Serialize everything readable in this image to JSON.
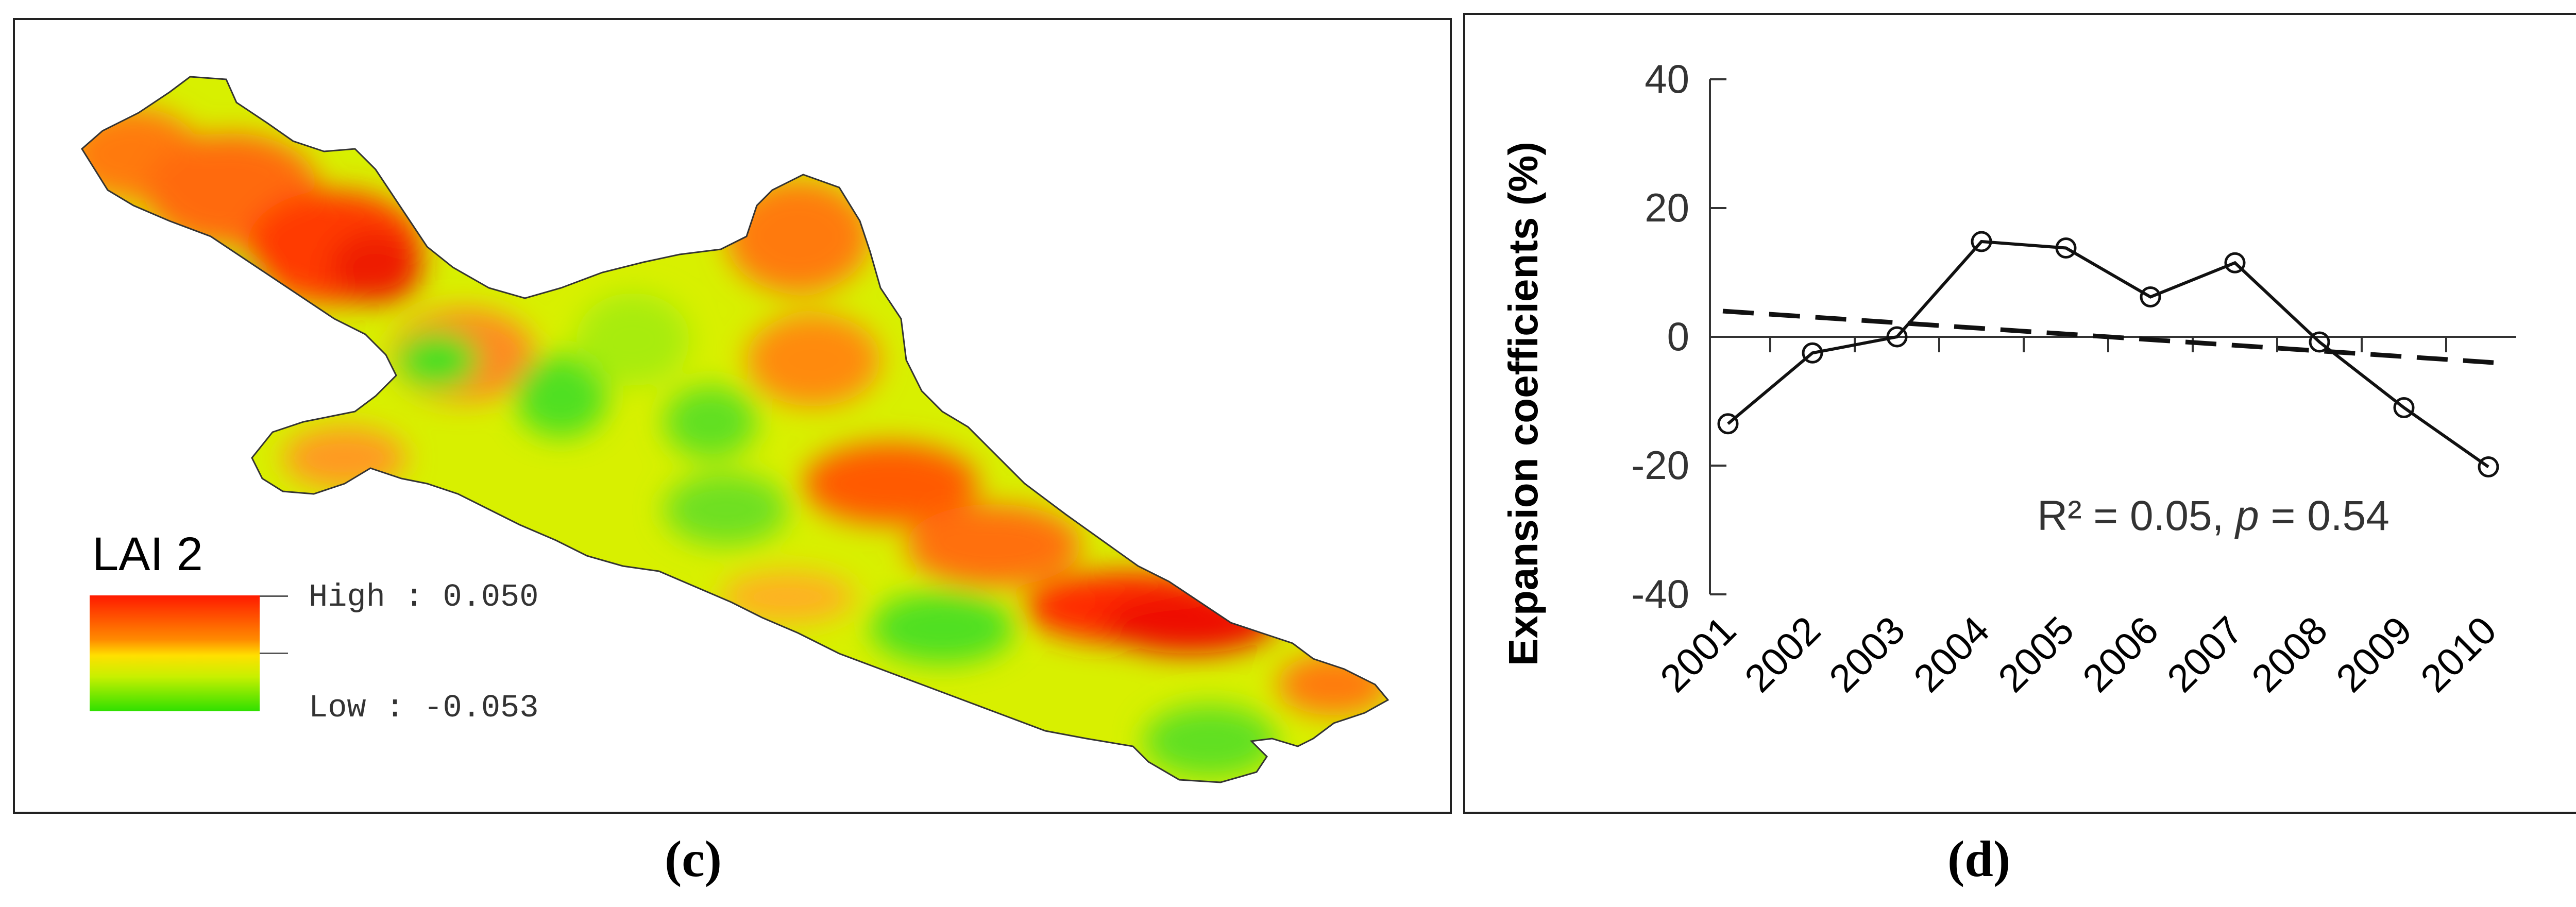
{
  "panel_c": {
    "caption": "(c)",
    "legend": {
      "title": "LAI 2",
      "high_label": "High : 0.050",
      "low_label": "Low : -0.053",
      "colors": [
        "#ff1a00",
        "#ff8a00",
        "#ffe000",
        "#c8f000",
        "#2fe000"
      ]
    }
  },
  "panel_d": {
    "caption": "(d)"
  },
  "chart_data": {
    "type": "line",
    "title": "",
    "xlabel": "",
    "ylabel": "Expansion coefficients (%)",
    "categories": [
      "2001",
      "2002",
      "2003",
      "2004",
      "2005",
      "2006",
      "2007",
      "2008",
      "2009",
      "2010"
    ],
    "series": [
      {
        "values": [
          -13.5,
          -2.5,
          0,
          14.8,
          13.8,
          6.2,
          11.5,
          -0.8,
          -11,
          -20.2
        ]
      }
    ],
    "trend_line": {
      "start": 4,
      "end": -4,
      "style": "dashed"
    },
    "yticks": [
      -40,
      -20,
      0,
      20,
      40
    ],
    "ylim": [
      -40,
      40
    ],
    "annotation": "R² = 0.05, p = 0.54",
    "annotation_parts": {
      "pre": "R² = 0.05, ",
      "italic": "p",
      "post": " = 0.54"
    },
    "grid": false,
    "marker": "open-circle"
  }
}
